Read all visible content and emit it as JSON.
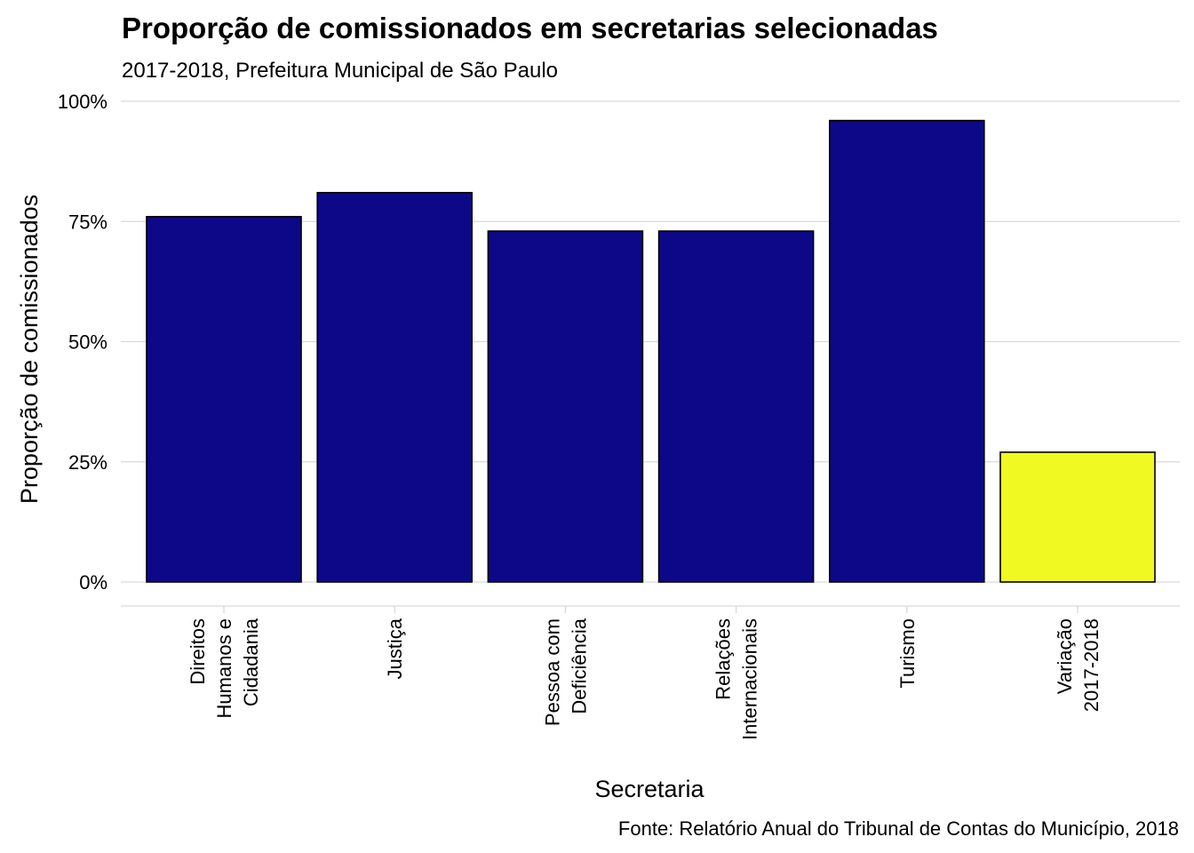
{
  "chart_data": {
    "type": "bar",
    "title": "Proporção de comissionados em secretarias selecionadas",
    "subtitle": "2017-2018, Prefeitura Municipal de São Paulo",
    "xlabel": "Secretaria",
    "ylabel": "Proporção de comissionados",
    "caption": "Fonte: Relatório Anual do Tribunal de Contas do Município, 2018",
    "categories": [
      [
        "Direitos",
        "Humanos e",
        "Cidadania"
      ],
      [
        "Justiça"
      ],
      [
        "Pessoa com",
        "Deficiência"
      ],
      [
        "Relações",
        "Internacionais"
      ],
      [
        "Turismo"
      ],
      [
        "Variação",
        "2017-2018"
      ]
    ],
    "values": [
      0.76,
      0.81,
      0.73,
      0.73,
      0.96,
      0.27
    ],
    "bar_colors": [
      "#0d0887",
      "#0d0887",
      "#0d0887",
      "#0d0887",
      "#0d0887",
      "#f0f921"
    ],
    "ylim": [
      0,
      1
    ],
    "yticks": [
      0,
      0.25,
      0.5,
      0.75,
      1.0
    ],
    "ytick_labels": [
      "0%",
      "25%",
      "50%",
      "75%",
      "100%"
    ],
    "grid": true,
    "legend": "none"
  }
}
